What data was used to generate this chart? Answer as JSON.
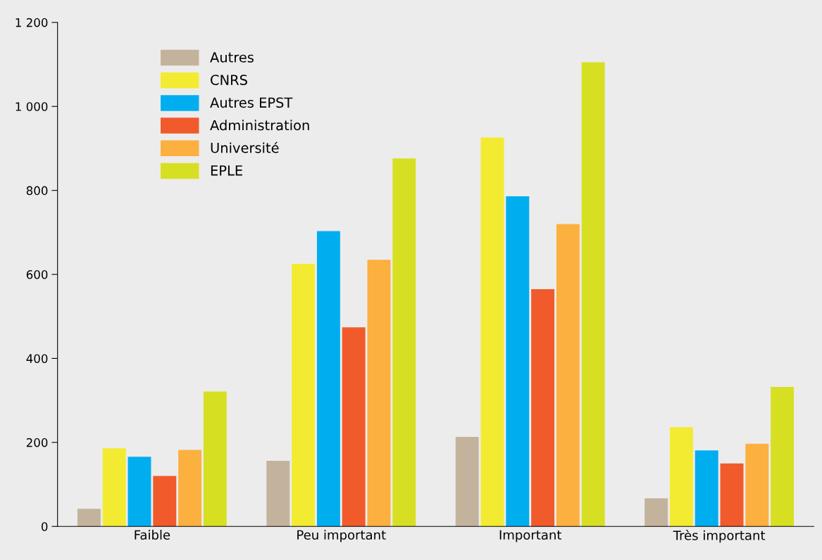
{
  "chart_data": {
    "type": "bar",
    "categories": [
      "Faible",
      "Peu important",
      "Important",
      "Très important"
    ],
    "series": [
      {
        "name": "Autres",
        "color": "#c4b39c",
        "values": [
          42,
          156,
          213,
          67
        ]
      },
      {
        "name": "CNRS",
        "color": "#f3eb31",
        "values": [
          186,
          625,
          926,
          236
        ]
      },
      {
        "name": "Autres EPST",
        "color": "#00aeef",
        "values": [
          166,
          703,
          786,
          181
        ]
      },
      {
        "name": "Administration",
        "color": "#f15a2b",
        "values": [
          120,
          474,
          565,
          150
        ]
      },
      {
        "name": "Université",
        "color": "#fbb040",
        "values": [
          182,
          635,
          720,
          197
        ]
      },
      {
        "name": "EPLE",
        "color": "#d7df23",
        "values": [
          321,
          876,
          1105,
          332
        ]
      }
    ],
    "ylim": [
      0,
      1200
    ],
    "yticks": [
      0,
      200,
      400,
      600,
      800,
      {
        "value": 1000,
        "label": "1 000"
      },
      {
        "value": 1200,
        "label": "1 200"
      }
    ],
    "grid": false,
    "legend": "top left"
  }
}
